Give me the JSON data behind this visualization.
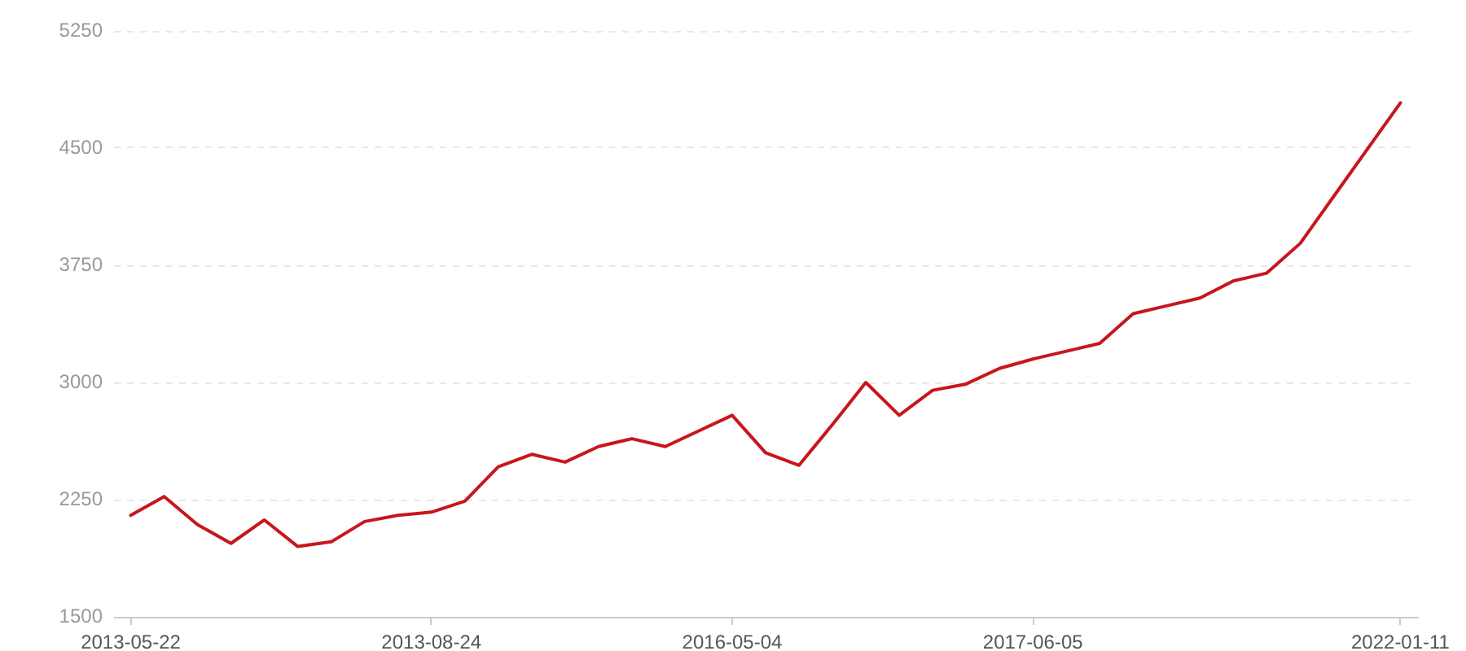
{
  "chart_data": {
    "type": "line",
    "categories": [
      "2013-05-22",
      null,
      null,
      null,
      null,
      null,
      null,
      null,
      null,
      "2013-08-24",
      null,
      null,
      null,
      null,
      null,
      null,
      null,
      null,
      "2016-05-04",
      null,
      null,
      null,
      null,
      null,
      null,
      null,
      null,
      "2017-06-05",
      null,
      null,
      null,
      null,
      null,
      null,
      null,
      null,
      null,
      null,
      "2022-01-11"
    ],
    "series": [
      {
        "color": "#c8161d",
        "values": [
          2150,
          2270,
          2090,
          1970,
          2120,
          1950,
          1980,
          2110,
          2150,
          2170,
          2240,
          2460,
          2540,
          2490,
          2590,
          2640,
          2590,
          2690,
          2790,
          2550,
          2470,
          2730,
          3000,
          2790,
          2950,
          2990,
          3090,
          3150,
          3200,
          3250,
          3440,
          3490,
          3540,
          3650,
          3700,
          3890,
          4190,
          4490,
          4790
        ]
      }
    ],
    "ylim": [
      1500,
      5250
    ],
    "yticks": [
      1500,
      2250,
      3000,
      3750,
      4500,
      5250
    ],
    "grid": "y",
    "legend": false,
    "marker": "none",
    "line_style": "solid"
  }
}
